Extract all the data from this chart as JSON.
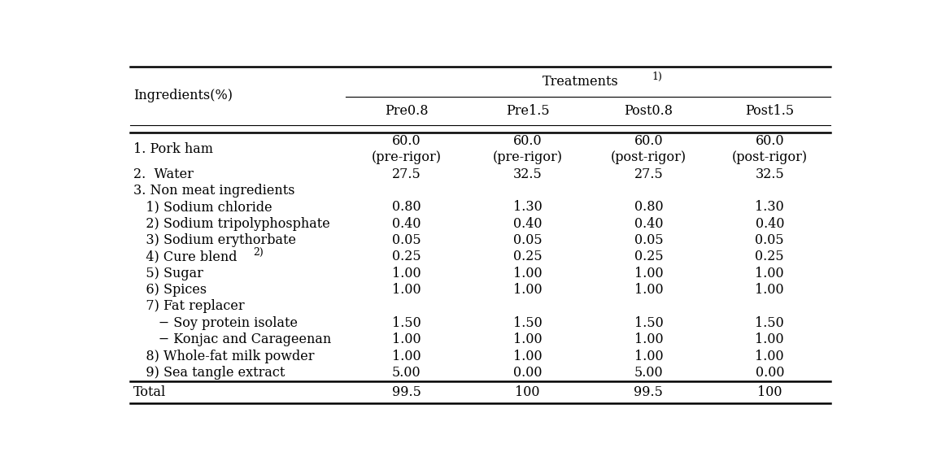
{
  "col_headers": [
    "Pre0.8",
    "Pre1.5",
    "Post0.8",
    "Post1.5"
  ],
  "rows": [
    {
      "label": "1. Pork ham",
      "values": [
        "60.0\n(pre-rigor)",
        "60.0\n(pre-rigor)",
        "60.0\n(post-rigor)",
        "60.0\n(post-rigor)"
      ],
      "double_height": true
    },
    {
      "label": "2.  Water",
      "values": [
        "27.5",
        "32.5",
        "27.5",
        "32.5"
      ],
      "double_height": false
    },
    {
      "label": "3. Non meat ingredients",
      "values": [
        "",
        "",
        "",
        ""
      ],
      "double_height": false
    },
    {
      "label": "   1) Sodium chloride",
      "values": [
        "0.80",
        "1.30",
        "0.80",
        "1.30"
      ],
      "double_height": false
    },
    {
      "label": "   2) Sodium tripolyphosphate",
      "values": [
        "0.40",
        "0.40",
        "0.40",
        "0.40"
      ],
      "double_height": false
    },
    {
      "label": "   3) Sodium erythorbate",
      "values": [
        "0.05",
        "0.05",
        "0.05",
        "0.05"
      ],
      "double_height": false
    },
    {
      "label": "   4) Cure blend",
      "label_sup": "2)",
      "values": [
        "0.25",
        "0.25",
        "0.25",
        "0.25"
      ],
      "double_height": false
    },
    {
      "label": "   5) Sugar",
      "values": [
        "1.00",
        "1.00",
        "1.00",
        "1.00"
      ],
      "double_height": false
    },
    {
      "label": "   6) Spices",
      "values": [
        "1.00",
        "1.00",
        "1.00",
        "1.00"
      ],
      "double_height": false
    },
    {
      "label": "   7) Fat replacer",
      "values": [
        "",
        "",
        "",
        ""
      ],
      "double_height": false
    },
    {
      "label": "      − Soy protein isolate",
      "values": [
        "1.50",
        "1.50",
        "1.50",
        "1.50"
      ],
      "double_height": false
    },
    {
      "label": "      − Konjac and Carageenan",
      "values": [
        "1.00",
        "1.00",
        "1.00",
        "1.00"
      ],
      "double_height": false
    },
    {
      "label": "   8) Whole-fat milk powder",
      "values": [
        "1.00",
        "1.00",
        "1.00",
        "1.00"
      ],
      "double_height": false
    },
    {
      "label": "   9) Sea tangle extract",
      "values": [
        "5.00",
        "0.00",
        "5.00",
        "0.00"
      ],
      "double_height": false
    }
  ],
  "total_label": "Total",
  "total_values": [
    "99.5",
    "100",
    "99.5",
    "100"
  ],
  "ingredients_header": "Ingredients(%)",
  "font_size": 11.5,
  "header_font_size": 11.5
}
